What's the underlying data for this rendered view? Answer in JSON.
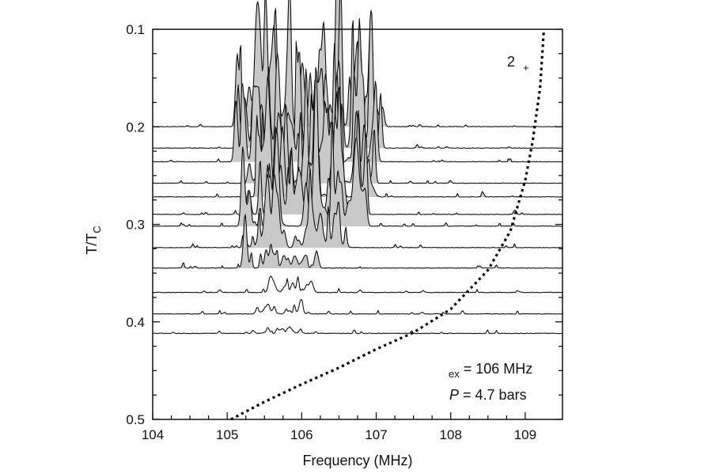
{
  "chart_data": {
    "type": "line",
    "xlabel": "Frequency (MHz)",
    "ylabel": {
      "main": "T/T",
      "sub": "C"
    },
    "xlim": [
      104,
      109.5
    ],
    "ylim": [
      0.1,
      0.5
    ],
    "y_inverted": true,
    "grid": false,
    "x_ticks": [
      "104",
      "105",
      "106",
      "107",
      "108",
      "109"
    ],
    "y_ticks": [
      "0.1",
      "0.2",
      "0.3",
      "0.4",
      "0.5"
    ],
    "spectra": {
      "description_units": "baseline temperature T/Tc, frequency range of main signal (MHz)",
      "traces": [
        {
          "t": 0.2,
          "peak_lo": 105.1,
          "peak_hi": 107.1,
          "max_height": 0.115,
          "filled": true
        },
        {
          "t": 0.222,
          "peak_lo": 105.1,
          "peak_hi": 107.1,
          "max_height": 0.095,
          "filled": true
        },
        {
          "t": 0.236,
          "peak_lo": 105.1,
          "peak_hi": 107.0,
          "max_height": 0.085,
          "filled": true
        },
        {
          "t": 0.258,
          "peak_lo": 105.2,
          "peak_hi": 107.0,
          "max_height": 0.08,
          "filled": true
        },
        {
          "t": 0.272,
          "peak_lo": 105.2,
          "peak_hi": 107.0,
          "max_height": 0.075,
          "filled": true
        },
        {
          "t": 0.29,
          "peak_lo": 105.2,
          "peak_hi": 107.0,
          "max_height": 0.07,
          "filled": true
        },
        {
          "t": 0.302,
          "peak_lo": 105.2,
          "peak_hi": 106.9,
          "max_height": 0.065,
          "filled": true
        },
        {
          "t": 0.324,
          "peak_lo": 105.2,
          "peak_hi": 106.6,
          "max_height": 0.05,
          "filled": true
        },
        {
          "t": 0.345,
          "peak_lo": 105.2,
          "peak_hi": 106.2,
          "max_height": 0.025,
          "filled": true
        },
        {
          "t": 0.37,
          "peak_lo": 105.4,
          "peak_hi": 106.2,
          "max_height": 0.015,
          "filled": false
        },
        {
          "t": 0.392,
          "peak_lo": 105.4,
          "peak_hi": 106.0,
          "max_height": 0.008,
          "filled": false
        },
        {
          "t": 0.412,
          "peak_lo": 105.5,
          "peak_hi": 106.0,
          "max_height": 0.005,
          "filled": false
        }
      ]
    },
    "dotted_curve": {
      "style": "dotted",
      "points": [
        [
          105.05,
          0.5
        ],
        [
          105.5,
          0.482
        ],
        [
          106.0,
          0.464
        ],
        [
          106.5,
          0.447
        ],
        [
          107.0,
          0.428
        ],
        [
          107.5,
          0.411
        ],
        [
          108.0,
          0.387
        ],
        [
          108.5,
          0.347
        ],
        [
          108.8,
          0.307
        ],
        [
          109.0,
          0.255
        ],
        [
          109.1,
          0.215
        ],
        [
          109.2,
          0.16
        ],
        [
          109.25,
          0.1
        ]
      ]
    },
    "annotations": {
      "top_right": {
        "main": "2",
        "sub": "+"
      },
      "line1": {
        "sub": "ex",
        "main": "= 106 MHz"
      },
      "line2": {
        "italic": "P",
        "main": "= 4.7 bars"
      }
    }
  }
}
